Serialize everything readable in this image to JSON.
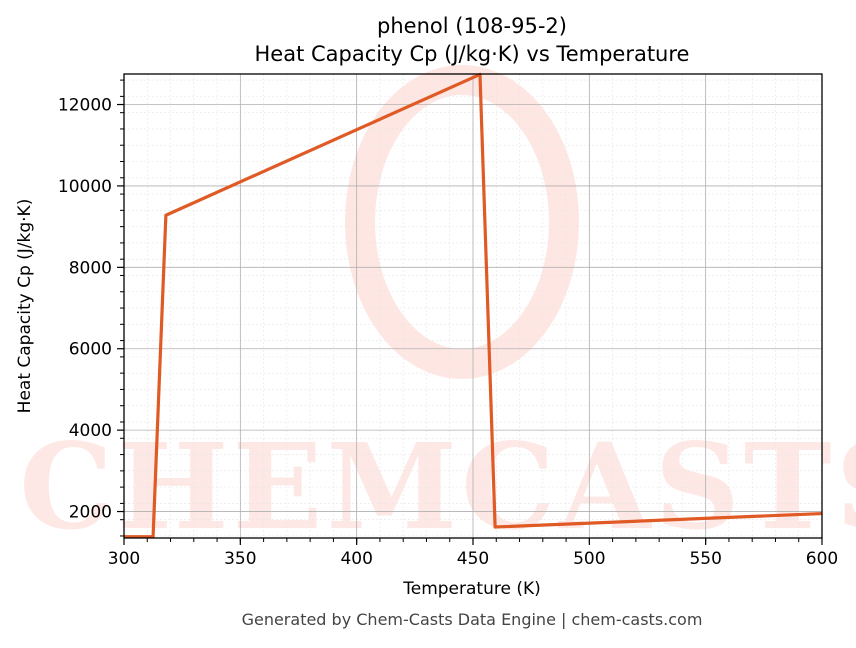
{
  "chart_data": {
    "type": "line",
    "title": "phenol (108-95-2)",
    "subtitle": "Heat Capacity Cp (J/kg·K) vs Temperature",
    "xlabel": "Temperature (K)",
    "ylabel": "Heat Capacity Cp (J/kg·K)",
    "xlim": [
      300,
      600
    ],
    "ylim": [
      1350,
      12750
    ],
    "x_ticks": [
      300,
      350,
      400,
      450,
      500,
      550,
      600
    ],
    "y_ticks": [
      2000,
      4000,
      6000,
      8000,
      10000,
      12000
    ],
    "grid": true,
    "series": [
      {
        "color": "#e05a26",
        "x": [
          300,
          312.5,
          318,
          453,
          459.5,
          600
        ],
        "y": [
          1380,
          1380,
          9280,
          12740,
          1620,
          1950
        ]
      }
    ]
  },
  "watermark": {
    "text": "CHEMCASTS",
    "color": "#fdd7d0"
  },
  "footer": {
    "text": "Generated by Chem-Casts Data Engine | chem-casts.com"
  }
}
